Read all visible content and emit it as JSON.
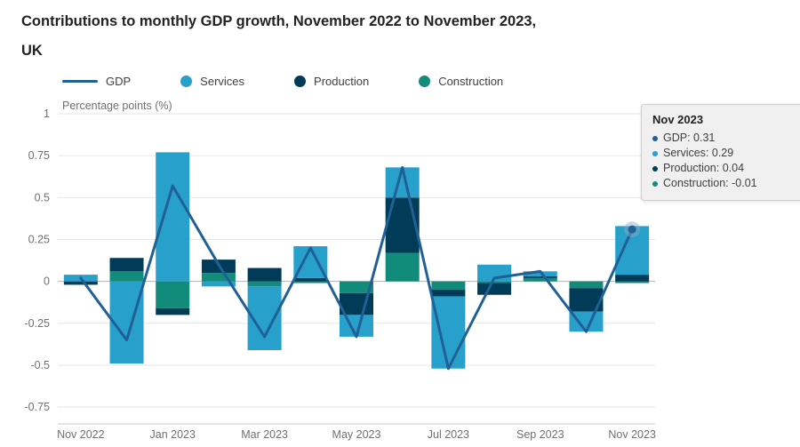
{
  "title": {
    "line1": "Contributions to monthly GDP growth, November 2022 to November 2023,",
    "line2": "UK"
  },
  "legend": [
    {
      "label": "GDP",
      "type": "line",
      "color": "#206095"
    },
    {
      "label": "Services",
      "type": "circle",
      "color": "#27a0cc"
    },
    {
      "label": "Production",
      "type": "circle",
      "color": "#003c57"
    },
    {
      "label": "Construction",
      "type": "circle",
      "color": "#118c7b"
    }
  ],
  "axis": {
    "y_label": "Percentage points (%)"
  },
  "tooltip": {
    "title": "Nov 2023",
    "items": [
      {
        "label": "GDP",
        "value": "0.31",
        "color": "#206095"
      },
      {
        "label": "Services",
        "value": "0.29",
        "color": "#27a0cc"
      },
      {
        "label": "Production",
        "value": "0.04",
        "color": "#003c57"
      },
      {
        "label": "Construction",
        "value": "-0.01",
        "color": "#118c7b"
      }
    ]
  },
  "chart_data": {
    "type": "bar",
    "subtype": "stacked-columns-with-line-overlay",
    "title": "Contributions to monthly GDP growth, November 2022 to November 2023, UK",
    "ylabel": "Percentage points (%)",
    "ylim": [
      -0.85,
      1
    ],
    "grid": true,
    "legend_position": "top",
    "categories": [
      "Nov 2022",
      "Dec 2022",
      "Jan 2023",
      "Feb 2023",
      "Mar 2023",
      "Apr 2023",
      "May 2023",
      "Jun 2023",
      "Jul 2023",
      "Aug 2023",
      "Sep 2023",
      "Oct 2023",
      "Nov 2023"
    ],
    "x_tick_labels": [
      "Nov 2022",
      "Jan 2023",
      "Mar 2023",
      "May 2023",
      "Jul 2023",
      "Sep 2023",
      "Nov 2023"
    ],
    "y_ticks": [
      1,
      0.75,
      0.5,
      0.25,
      0,
      -0.25,
      -0.5,
      -0.75
    ],
    "bar_series": [
      {
        "name": "Services",
        "color": "#27a0cc",
        "values": [
          0.04,
          -0.49,
          0.77,
          -0.03,
          -0.38,
          0.19,
          -0.13,
          0.18,
          -0.43,
          0.1,
          0.03,
          -0.12,
          0.29
        ]
      },
      {
        "name": "Production",
        "color": "#003c57",
        "values": [
          -0.02,
          0.08,
          -0.04,
          0.08,
          0.08,
          0.02,
          -0.13,
          0.33,
          -0.04,
          -0.07,
          0.01,
          -0.14,
          0.04
        ]
      },
      {
        "name": "Construction",
        "color": "#118c7b",
        "values": [
          0,
          0.06,
          -0.16,
          0.05,
          -0.03,
          -0.01,
          -0.07,
          0.17,
          -0.05,
          -0.01,
          0.02,
          -0.04,
          -0.01
        ]
      }
    ],
    "stack_order_from_zero": [
      "Construction",
      "Production",
      "Services"
    ],
    "line_series": {
      "name": "GDP",
      "color": "#206095",
      "values": [
        0.02,
        -0.35,
        0.57,
        0.1,
        -0.33,
        0.2,
        -0.33,
        0.68,
        -0.52,
        0.02,
        0.06,
        -0.3,
        0.31
      ]
    },
    "highlight_index": 12
  }
}
